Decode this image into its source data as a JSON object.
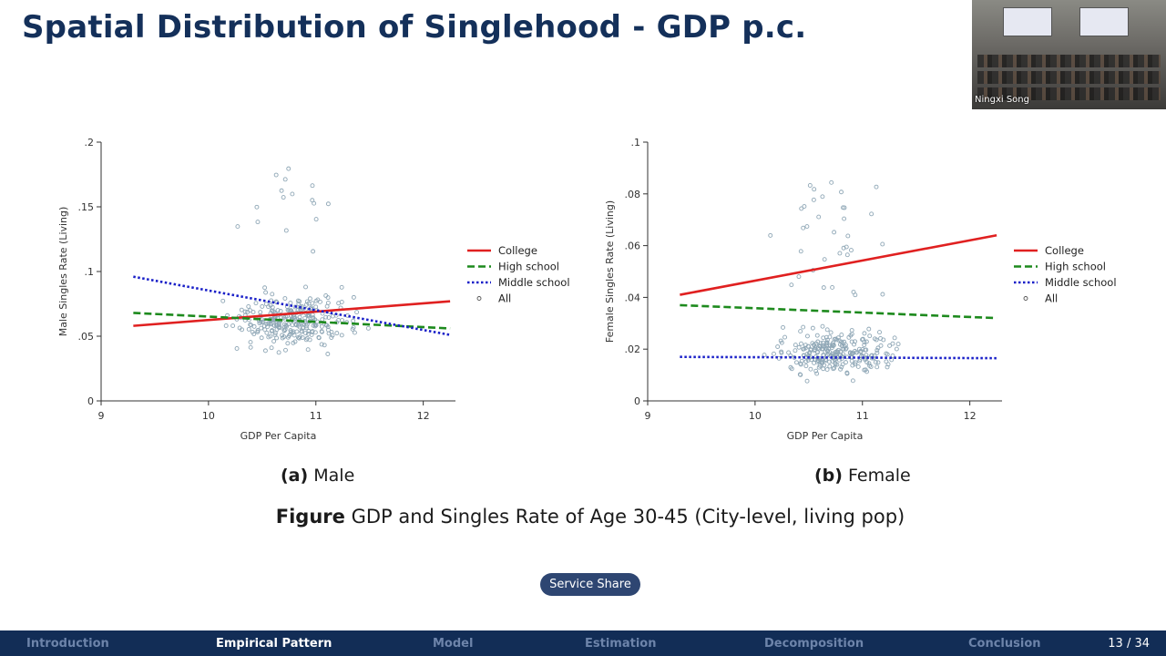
{
  "slide": {
    "title": "Spatial Distribution of Singlehood - GDP p.c.",
    "speaker_name": "Ningxi Song",
    "figure_caption_bold": "Figure",
    "figure_caption_text": "GDP and Singles Rate of Age 30-45 (City-level, living pop)",
    "service_share_label": "Service Share",
    "page": "13 / 34"
  },
  "nav": {
    "items": [
      {
        "label": "Introduction",
        "active": false
      },
      {
        "label": "Empirical Pattern",
        "active": true
      },
      {
        "label": "Model",
        "active": false
      },
      {
        "label": "Estimation",
        "active": false
      },
      {
        "label": "Decomposition",
        "active": false
      },
      {
        "label": "Conclusion",
        "active": false
      }
    ]
  },
  "colors": {
    "title": "#14305a",
    "nav_bg": "#122d56",
    "college": "#e02020",
    "high_school": "#1d8a1d",
    "middle_school": "#1a20c8",
    "scatter": "#8fa7b6"
  },
  "chart_data": [
    {
      "type": "scatter",
      "panel_label": "(a)",
      "panel_title": "Male",
      "xlabel": "GDP Per Capita",
      "ylabel": "Male Singles Rate (Living)",
      "xlim": [
        9,
        12.3
      ],
      "ylim": [
        0,
        0.2
      ],
      "xticks": [
        9,
        10,
        11,
        12
      ],
      "yticks": [
        0,
        0.05,
        0.1,
        0.15,
        0.2
      ],
      "ytick_labels": [
        "0",
        ".05",
        ".1",
        ".15",
        ".2"
      ],
      "grid": false,
      "legend": "right",
      "series": [
        {
          "name": "College",
          "kind": "line",
          "style": "solid",
          "x": [
            9.3,
            12.25
          ],
          "y": [
            0.058,
            0.077
          ]
        },
        {
          "name": "High school",
          "kind": "line",
          "style": "dashed",
          "x": [
            9.3,
            12.25
          ],
          "y": [
            0.068,
            0.056
          ]
        },
        {
          "name": "Middle school",
          "kind": "line",
          "style": "dotted",
          "x": [
            9.3,
            12.25
          ],
          "y": [
            0.096,
            0.051
          ]
        },
        {
          "name": "All",
          "kind": "points",
          "note": "city-level observations (approximate)"
        }
      ]
    },
    {
      "type": "scatter",
      "panel_label": "(b)",
      "panel_title": "Female",
      "xlabel": "GDP Per Capita",
      "ylabel": "Female Singles Rate (Living)",
      "xlim": [
        9,
        12.3
      ],
      "ylim": [
        0,
        0.1
      ],
      "xticks": [
        9,
        10,
        11,
        12
      ],
      "yticks": [
        0,
        0.02,
        0.04,
        0.06,
        0.08,
        0.1
      ],
      "ytick_labels": [
        "0",
        ".02",
        ".04",
        ".06",
        ".08",
        ".1"
      ],
      "grid": false,
      "legend": "right",
      "series": [
        {
          "name": "College",
          "kind": "line",
          "style": "solid",
          "x": [
            9.3,
            12.25
          ],
          "y": [
            0.041,
            0.064
          ]
        },
        {
          "name": "High school",
          "kind": "line",
          "style": "dashed",
          "x": [
            9.3,
            12.25
          ],
          "y": [
            0.037,
            0.032
          ]
        },
        {
          "name": "Middle school",
          "kind": "line",
          "style": "dotted",
          "x": [
            9.3,
            12.25
          ],
          "y": [
            0.017,
            0.0165
          ]
        },
        {
          "name": "All",
          "kind": "points",
          "note": "city-level observations (approximate)"
        }
      ]
    }
  ]
}
